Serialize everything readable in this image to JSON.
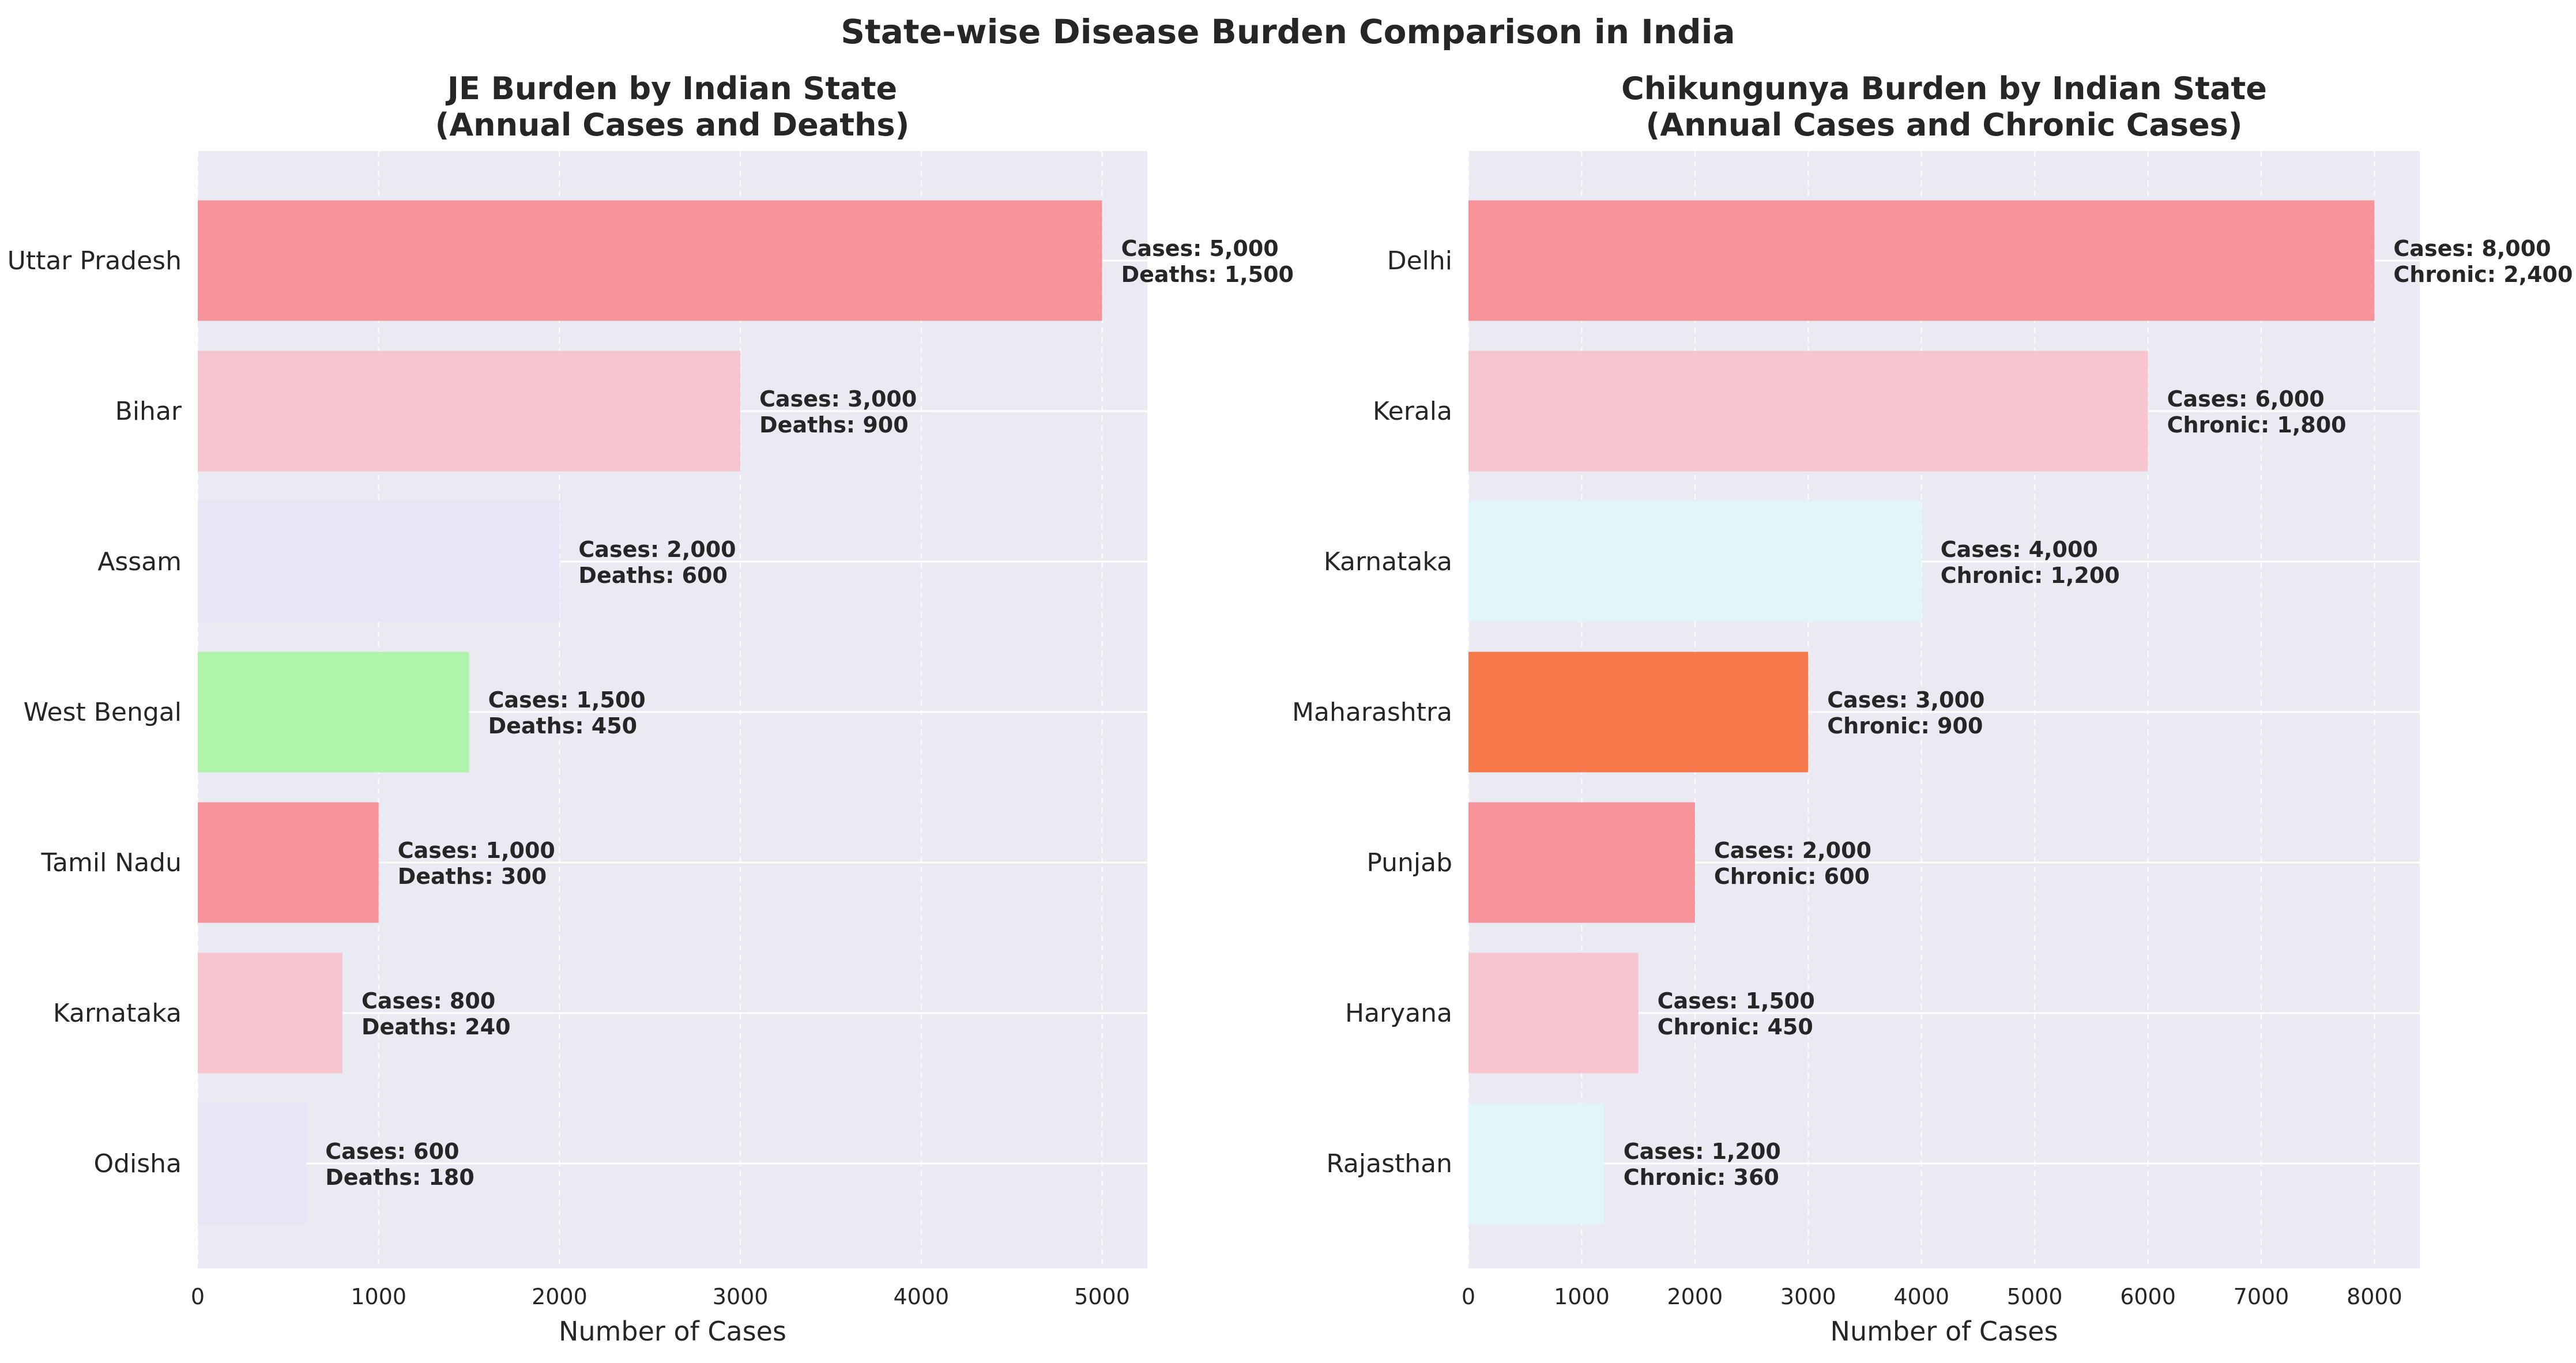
{
  "figure": {
    "title": "State-wise Disease Burden Comparison in India"
  },
  "chart_data": [
    {
      "type": "bar",
      "orientation": "horizontal",
      "title_lines": [
        "JE Burden by Indian State",
        "(Annual Cases and Deaths)"
      ],
      "xlabel": "Number of Cases",
      "ylabel": "",
      "xlim": [
        0,
        5250
      ],
      "xticks": [
        0,
        1000,
        2000,
        3000,
        4000,
        5000
      ],
      "grid": true,
      "secondary_label": "Deaths",
      "categories": [
        "Uttar Pradesh",
        "Bihar",
        "Assam",
        "West Bengal",
        "Tamil Nadu",
        "Karnataka",
        "Odisha"
      ],
      "series": [
        {
          "name": "Cases",
          "values": [
            5000,
            3000,
            2000,
            1500,
            1000,
            800,
            600
          ]
        },
        {
          "name": "Deaths",
          "values": [
            1500,
            900,
            600,
            450,
            300,
            240,
            180
          ]
        }
      ],
      "bar_colors": [
        "#f7939a",
        "#f7c5d0",
        "#e6e6f7",
        "#b0f4ab",
        "#f7939a",
        "#f7c5d0",
        "#e6e6f7"
      ],
      "data_labels": [
        [
          "Cases: 5,000",
          "Deaths: 1,500"
        ],
        [
          "Cases: 3,000",
          "Deaths: 900"
        ],
        [
          "Cases: 2,000",
          "Deaths: 600"
        ],
        [
          "Cases: 1,500",
          "Deaths: 450"
        ],
        [
          "Cases: 1,000",
          "Deaths: 300"
        ],
        [
          "Cases: 800",
          "Deaths: 240"
        ],
        [
          "Cases: 600",
          "Deaths: 180"
        ]
      ]
    },
    {
      "type": "bar",
      "orientation": "horizontal",
      "title_lines": [
        "Chikungunya Burden by Indian State",
        "(Annual Cases and Chronic Cases)"
      ],
      "xlabel": "Number of Cases",
      "ylabel": "",
      "xlim": [
        0,
        8400
      ],
      "xticks": [
        0,
        1000,
        2000,
        3000,
        4000,
        5000,
        6000,
        7000,
        8000
      ],
      "grid": true,
      "secondary_label": "Chronic",
      "categories": [
        "Delhi",
        "Kerala",
        "Karnataka",
        "Maharashtra",
        "Punjab",
        "Haryana",
        "Rajasthan"
      ],
      "series": [
        {
          "name": "Cases",
          "values": [
            8000,
            6000,
            4000,
            3000,
            2000,
            1500,
            1200
          ]
        },
        {
          "name": "Chronic",
          "values": [
            2400,
            1800,
            1200,
            900,
            600,
            450,
            360
          ]
        }
      ],
      "bar_colors": [
        "#f7939a",
        "#f7c5d0",
        "#e1f6f9",
        "#f7784b",
        "#f7939a",
        "#f7c5d0",
        "#e1f6f9"
      ],
      "data_labels": [
        [
          "Cases: 8,000",
          "Chronic: 2,400"
        ],
        [
          "Cases: 6,000",
          "Chronic: 1,800"
        ],
        [
          "Cases: 4,000",
          "Chronic: 1,200"
        ],
        [
          "Cases: 3,000",
          "Chronic: 900"
        ],
        [
          "Cases: 2,000",
          "Chronic: 600"
        ],
        [
          "Cases: 1,500",
          "Chronic: 450"
        ],
        [
          "Cases: 1,200",
          "Chronic: 360"
        ]
      ]
    }
  ],
  "style": {
    "plot_background": "#eaeaf2",
    "grid_color": "#ffffff",
    "text_color": "#262626"
  }
}
